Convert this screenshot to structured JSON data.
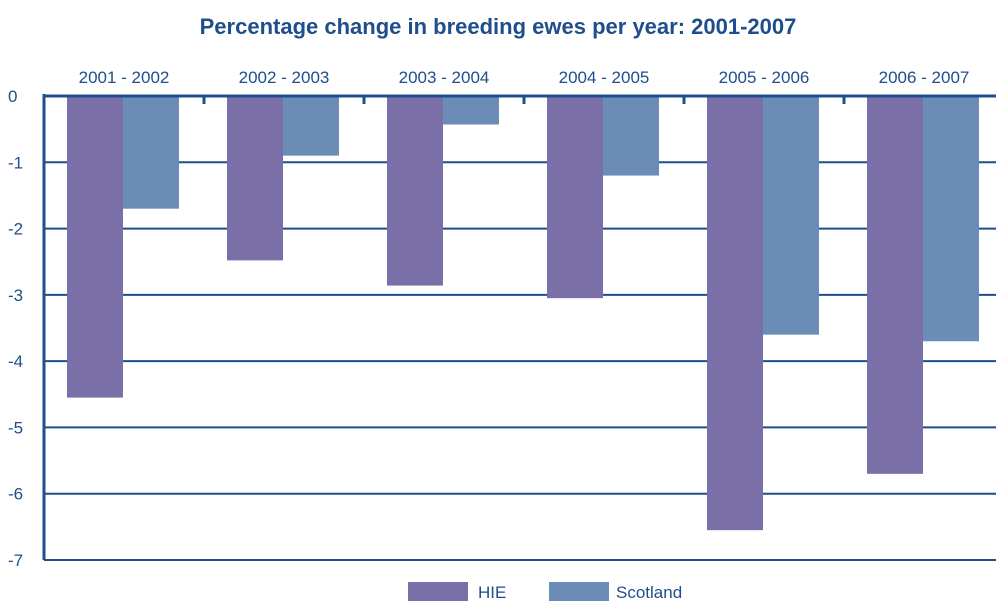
{
  "chart_data": {
    "type": "bar",
    "title": "Percentage change in breeding ewes per year: 2001-2007",
    "xlabel": "",
    "ylabel": "",
    "categories": [
      "2001 - 2002",
      "2002 - 2003",
      "2003 - 2004",
      "2004 - 2005",
      "2005 - 2006",
      "2006 - 2007"
    ],
    "series": [
      {
        "name": "HIE",
        "color": "#7b6fa8",
        "values": [
          -4.55,
          -2.48,
          -2.86,
          -3.05,
          -6.55,
          -5.7
        ]
      },
      {
        "name": "Scotland",
        "color": "#6a8cb5",
        "values": [
          -1.7,
          -0.9,
          -0.43,
          -1.2,
          -3.6,
          -3.7
        ]
      }
    ],
    "ylim": [
      -7,
      0
    ],
    "yticks": [
      0,
      -1,
      -2,
      -3,
      -4,
      -5,
      -6,
      -7
    ],
    "grid": true,
    "legend_position": "bottom",
    "axis_color": "#1f4e8c"
  }
}
